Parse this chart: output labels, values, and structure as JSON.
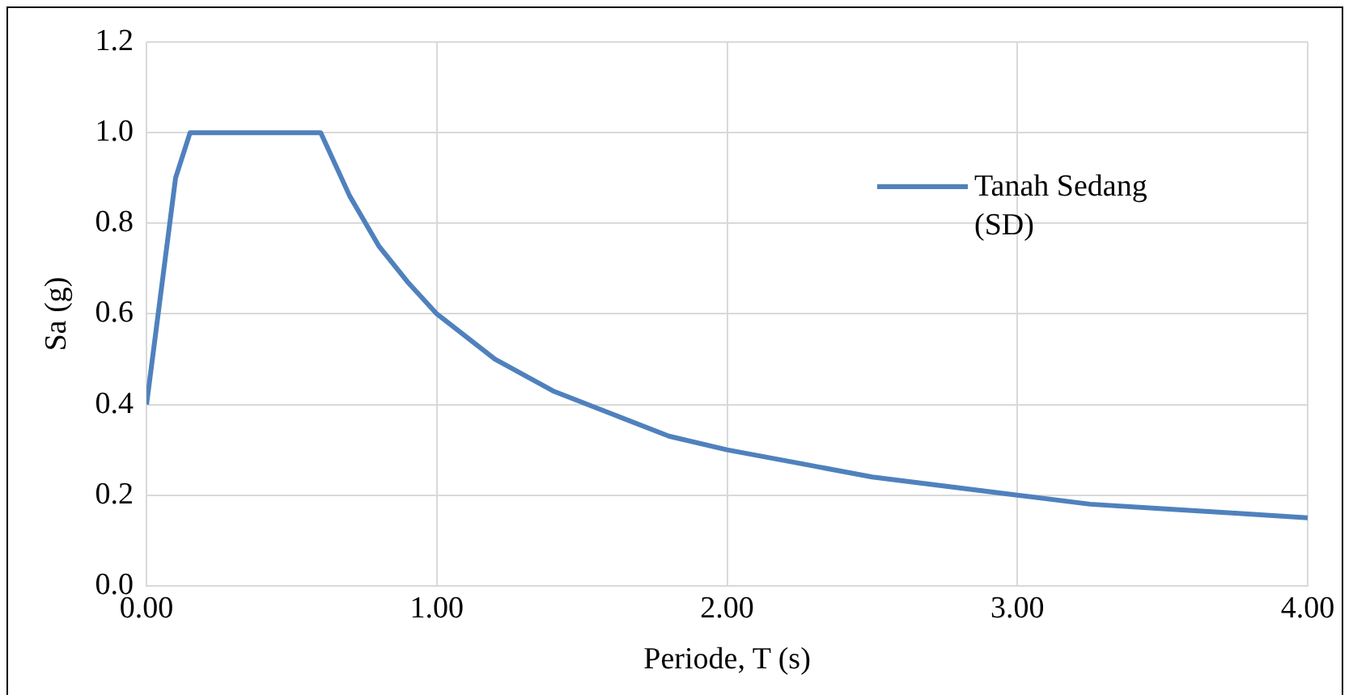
{
  "chart_data": {
    "type": "line",
    "xlabel": "Periode, T (s)",
    "ylabel": "Sa (g)",
    "xlim": [
      0,
      4
    ],
    "xticks": [
      {
        "value": 0,
        "label": "0.00"
      },
      {
        "value": 1,
        "label": "1.00"
      },
      {
        "value": 2,
        "label": "2.00"
      },
      {
        "value": 3,
        "label": "3.00"
      },
      {
        "value": 4,
        "label": "4.00"
      }
    ],
    "ylim": [
      0,
      1.2
    ],
    "yticks": [
      {
        "value": 0,
        "label": "0.0"
      },
      {
        "value": 0.2,
        "label": "0.2"
      },
      {
        "value": 0.4,
        "label": "0.4"
      },
      {
        "value": 0.6,
        "label": "0.6"
      },
      {
        "value": 0.8,
        "label": "0.8"
      },
      {
        "value": 1,
        "label": "1.0"
      },
      {
        "value": 1.2,
        "label": "1.2"
      }
    ],
    "grid": true,
    "legend": "top right",
    "marker": "none",
    "line_style": "solid",
    "series": [
      {
        "name": "Tanah Sedang (SD)",
        "color": "#4f81bd",
        "x": [
          0,
          0.1,
          0.15,
          0.6,
          0.7,
          0.8,
          0.9,
          1.0,
          1.2,
          1.4,
          1.6,
          1.8,
          2.0,
          2.25,
          2.5,
          2.75,
          3.0,
          3.25,
          3.5,
          3.75,
          4.0
        ],
        "values": [
          0.4,
          0.9,
          1.0,
          1.0,
          0.86,
          0.75,
          0.67,
          0.6,
          0.5,
          0.43,
          0.38,
          0.33,
          0.3,
          0.27,
          0.24,
          0.22,
          0.2,
          0.18,
          0.17,
          0.16,
          0.15
        ]
      }
    ]
  }
}
